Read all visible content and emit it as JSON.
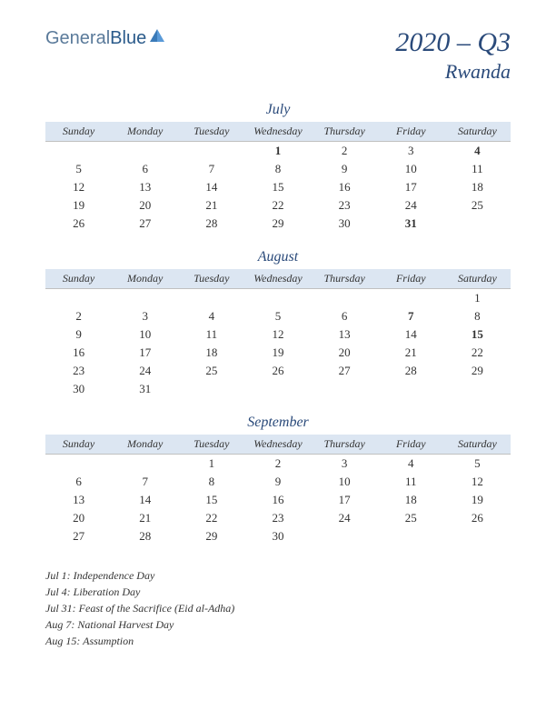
{
  "logo": {
    "text1": "General",
    "text2": "Blue"
  },
  "title": {
    "quarter": "2020 – Q3",
    "country": "Rwanda"
  },
  "weekdays": [
    "Sunday",
    "Monday",
    "Tuesday",
    "Wednesday",
    "Thursday",
    "Friday",
    "Saturday"
  ],
  "months": [
    {
      "name": "July",
      "weeks": [
        [
          "",
          "",
          "",
          "1",
          "2",
          "3",
          "4"
        ],
        [
          "5",
          "6",
          "7",
          "8",
          "9",
          "10",
          "11"
        ],
        [
          "12",
          "13",
          "14",
          "15",
          "16",
          "17",
          "18"
        ],
        [
          "19",
          "20",
          "21",
          "22",
          "23",
          "24",
          "25"
        ],
        [
          "26",
          "27",
          "28",
          "29",
          "30",
          "31",
          ""
        ]
      ],
      "holidays": [
        "1",
        "4",
        "31"
      ]
    },
    {
      "name": "August",
      "weeks": [
        [
          "",
          "",
          "",
          "",
          "",
          "",
          "1"
        ],
        [
          "2",
          "3",
          "4",
          "5",
          "6",
          "7",
          "8"
        ],
        [
          "9",
          "10",
          "11",
          "12",
          "13",
          "14",
          "15"
        ],
        [
          "16",
          "17",
          "18",
          "19",
          "20",
          "21",
          "22"
        ],
        [
          "23",
          "24",
          "25",
          "26",
          "27",
          "28",
          "29"
        ],
        [
          "30",
          "31",
          "",
          "",
          "",
          "",
          ""
        ]
      ],
      "holidays": [
        "7",
        "15"
      ]
    },
    {
      "name": "September",
      "weeks": [
        [
          "",
          "",
          "1",
          "2",
          "3",
          "4",
          "5"
        ],
        [
          "6",
          "7",
          "8",
          "9",
          "10",
          "11",
          "12"
        ],
        [
          "13",
          "14",
          "15",
          "16",
          "17",
          "18",
          "19"
        ],
        [
          "20",
          "21",
          "22",
          "23",
          "24",
          "25",
          "26"
        ],
        [
          "27",
          "28",
          "29",
          "30",
          "",
          "",
          ""
        ]
      ],
      "holidays": []
    }
  ],
  "holiday_list": [
    "Jul 1: Independence Day",
    "Jul 4: Liberation Day",
    "Jul 31: Feast of the Sacrifice (Eid al-Adha)",
    "Aug 7: National Harvest Day",
    "Aug 15: Assumption"
  ],
  "colors": {
    "header_bg": "#dce6f2",
    "title_color": "#2a4a7a",
    "holiday_color": "#c03030",
    "text_color": "#333333"
  }
}
